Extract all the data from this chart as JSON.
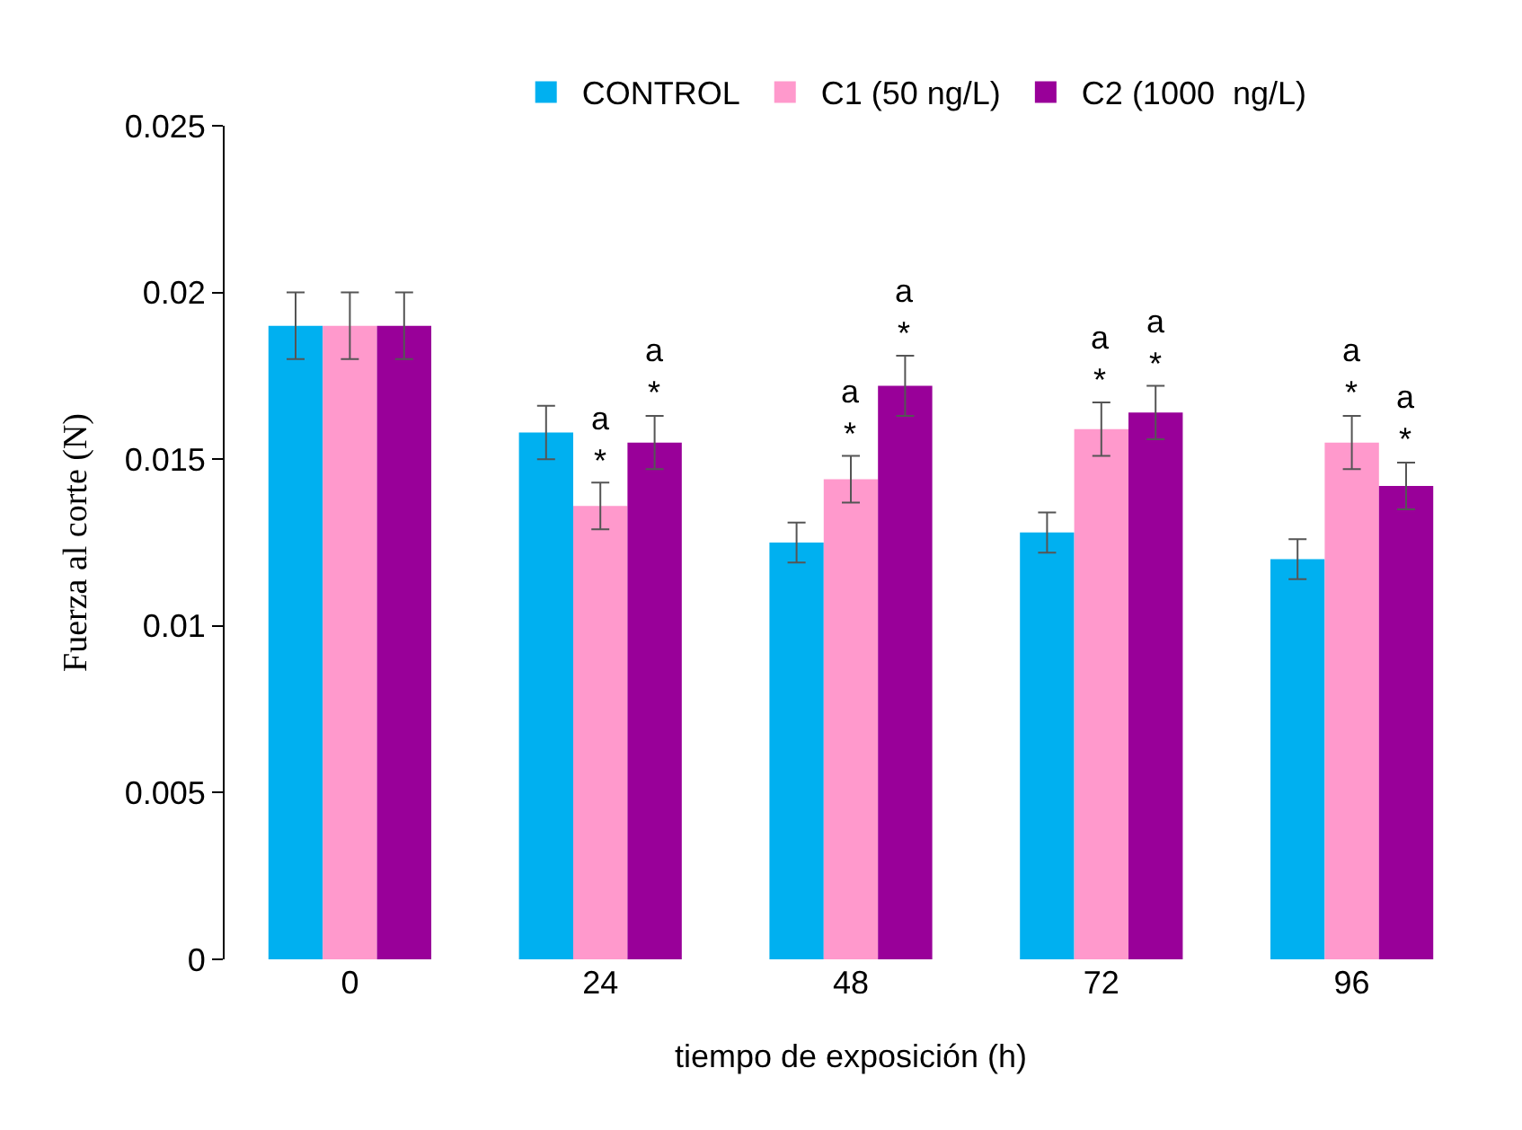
{
  "chart_data": {
    "type": "bar",
    "xlabel": "tiempo de exposición (h)",
    "ylabel": "Fuerza al corte (N)",
    "categories": [
      "0",
      "24",
      "48",
      "72",
      "96"
    ],
    "series": [
      {
        "name": "CONTROL",
        "color": "#00b0f0",
        "values": [
          0.019,
          0.0158,
          0.0125,
          0.0128,
          0.012
        ],
        "errors": [
          0.001,
          0.0008,
          0.0006,
          0.0006,
          0.0006
        ]
      },
      {
        "name": "C1 (50 ng/L)",
        "color": "#ff99cc",
        "values": [
          0.019,
          0.0136,
          0.0144,
          0.0159,
          0.0155
        ],
        "errors": [
          0.001,
          0.0007,
          0.0007,
          0.0008,
          0.0008
        ],
        "value_labels": [
          null,
          "a\n*",
          "a\n*",
          "a\n*",
          "a\n*"
        ]
      },
      {
        "name": "C2 (1000  ng/L)",
        "color": "#990099",
        "values": [
          0.019,
          0.0155,
          0.0172,
          0.0164,
          0.0142
        ],
        "errors": [
          0.001,
          0.0008,
          0.0009,
          0.0008,
          0.0007
        ],
        "value_labels": [
          null,
          "a\n*",
          "a\n*",
          "a\n*",
          "a\n*"
        ]
      }
    ],
    "ylim": [
      0,
      0.025
    ],
    "yticks": [
      0,
      0.005,
      0.01,
      0.015,
      0.02,
      0.025
    ],
    "legend": "top"
  }
}
